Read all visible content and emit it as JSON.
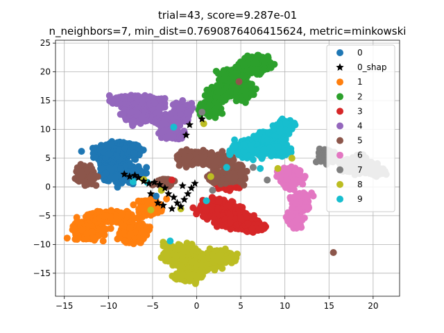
{
  "chart_data": {
    "type": "scatter",
    "title_lines": [
      "trial=43, score=9.287e-01",
      "n_neighbors=7, min_dist=0.7690876406415624, metric=minkowski"
    ],
    "xlabel": "",
    "ylabel": "",
    "xlim": [
      -16,
      23
    ],
    "ylim": [
      -19,
      25.5
    ],
    "xticks": [
      -15,
      -10,
      -5,
      0,
      5,
      10,
      15,
      20
    ],
    "yticks": [
      -15,
      -10,
      -5,
      0,
      5,
      10,
      15,
      20,
      25
    ],
    "grid": true,
    "legend_position": "top-right",
    "series": [
      {
        "name": "0",
        "marker": "circle",
        "color": "#1f77b4",
        "clusters": [
          [
            -9.5,
            5.8,
            1.6,
            1.5
          ],
          [
            -8.5,
            2.5,
            1.7,
            1.2
          ],
          [
            -7.3,
            6.5,
            1.0,
            0.9
          ]
        ]
      },
      {
        "name": "0_shap",
        "marker": "star",
        "color": "#000000",
        "points": [
          [
            -8.2,
            2.2
          ],
          [
            -7.6,
            1.8
          ],
          [
            -7.0,
            2.0
          ],
          [
            -6.6,
            1.6
          ],
          [
            -6.0,
            1.0
          ],
          [
            -5.4,
            0.6
          ],
          [
            -4.8,
            0.8
          ],
          [
            -4.2,
            0.4
          ],
          [
            -3.6,
            -0.2
          ],
          [
            -3.2,
            -1.2
          ],
          [
            -2.6,
            -1.8
          ],
          [
            -2.2,
            -2.8
          ],
          [
            -1.8,
            -3.4
          ],
          [
            -1.4,
            -2.2
          ],
          [
            -1.0,
            -1.2
          ],
          [
            -0.6,
            -0.2
          ],
          [
            -0.2,
            0.6
          ],
          [
            -3.8,
            -3.2
          ],
          [
            -2.8,
            -3.8
          ],
          [
            -4.4,
            -2.8
          ],
          [
            -1.2,
            9.0
          ],
          [
            -0.8,
            10.8
          ],
          [
            0.6,
            11.8
          ],
          [
            -1.6,
            0.2
          ],
          [
            -5.2,
            -1.2
          ]
        ]
      },
      {
        "name": "1",
        "marker": "circle",
        "color": "#ff7f0e",
        "clusters": [
          [
            -12.2,
            -7.5,
            1.4,
            1.2
          ],
          [
            -9.8,
            -5.2,
            2.3,
            0.7
          ],
          [
            -7.2,
            -7.8,
            1.2,
            1.3
          ],
          [
            -5.4,
            -3.4,
            1.0,
            1.1
          ]
        ]
      },
      {
        "name": "2",
        "marker": "circle",
        "color": "#2ca02c",
        "clusters": [
          [
            6.8,
            21.2,
            1.2,
            1.2
          ],
          [
            4.2,
            19.2,
            1.2,
            1.0
          ],
          [
            2.8,
            16.3,
            1.0,
            0.8
          ],
          [
            1.6,
            13.8,
            0.9,
            0.9
          ],
          [
            5.2,
            16.8,
            0.9,
            1.2
          ]
        ]
      },
      {
        "name": "3",
        "marker": "circle",
        "color": "#d62728",
        "clusters": [
          [
            2.3,
            -3.8,
            1.6,
            1.3
          ],
          [
            4.6,
            -5.8,
            1.6,
            1.0
          ],
          [
            6.6,
            -7.0,
            0.9,
            0.6
          ],
          [
            3.8,
            0.6,
            1.0,
            0.8
          ]
        ]
      },
      {
        "name": "4",
        "marker": "circle",
        "color": "#9467bd",
        "clusters": [
          [
            -7.4,
            14.8,
            1.4,
            0.9
          ],
          [
            -6.8,
            12.6,
            1.2,
            1.0
          ],
          [
            -4.8,
            14.6,
            1.0,
            0.8
          ],
          [
            -3.4,
            11.6,
            1.4,
            0.9
          ],
          [
            -1.6,
            13.0,
            0.8,
            1.3
          ],
          [
            -3.0,
            9.4,
            0.9,
            0.8
          ]
        ]
      },
      {
        "name": "5",
        "marker": "circle",
        "color": "#8c564b",
        "clusters": [
          [
            -12.6,
            2.0,
            0.8,
            1.1
          ],
          [
            -0.5,
            5.0,
            1.4,
            0.9
          ],
          [
            2.4,
            4.6,
            1.0,
            0.9
          ],
          [
            4.3,
            2.2,
            1.0,
            1.1
          ],
          [
            2.2,
            1.6,
            0.8,
            0.7
          ],
          [
            -3.6,
            0.8,
            0.8,
            0.5
          ]
        ]
      },
      {
        "name": "6",
        "marker": "circle",
        "color": "#e377c2",
        "clusters": [
          [
            10.6,
            1.8,
            1.0,
            1.4
          ],
          [
            11.8,
            -2.8,
            0.8,
            1.3
          ],
          [
            11.2,
            -5.8,
            0.6,
            1.0
          ]
        ]
      },
      {
        "name": "7",
        "marker": "circle",
        "color": "#7f7f7f",
        "clusters": [
          [
            15.0,
            5.2,
            0.9,
            0.8
          ],
          [
            18.2,
            3.8,
            1.5,
            1.0
          ],
          [
            20.5,
            2.6,
            0.8,
            0.5
          ]
        ]
      },
      {
        "name": "8",
        "marker": "circle",
        "color": "#bcbd22",
        "clusters": [
          [
            -1.6,
            -11.8,
            1.4,
            1.4
          ],
          [
            0.4,
            -13.4,
            1.2,
            1.0
          ],
          [
            2.6,
            -12.2,
            1.3,
            0.9
          ],
          [
            -1.0,
            -15.6,
            1.2,
            0.6
          ]
        ]
      },
      {
        "name": "9",
        "marker": "circle",
        "color": "#17becf",
        "clusters": [
          [
            6.0,
            6.6,
            1.6,
            1.0
          ],
          [
            8.4,
            8.4,
            1.2,
            1.0
          ],
          [
            10.0,
            10.6,
            0.7,
            0.8
          ],
          [
            9.0,
            6.4,
            1.2,
            0.8
          ]
        ]
      }
    ],
    "outliers": [
      {
        "series": "5",
        "x": 15.5,
        "y": -11.4
      },
      {
        "series": "5",
        "x": 4.8,
        "y": 18.3
      },
      {
        "series": "9",
        "x": -3.0,
        "y": -9.4
      },
      {
        "series": "9",
        "x": 1.1,
        "y": -2.4
      },
      {
        "series": "9",
        "x": -2.6,
        "y": 10.4
      },
      {
        "series": "9",
        "x": -5.6,
        "y": 0.8
      },
      {
        "series": "9",
        "x": -7.2,
        "y": 0.9
      },
      {
        "series": "9",
        "x": 3.4,
        "y": 3.4
      },
      {
        "series": "9",
        "x": 7.2,
        "y": 3.2
      },
      {
        "series": "8",
        "x": -6.0,
        "y": 1.3
      },
      {
        "series": "8",
        "x": -5.2,
        "y": -4.0
      },
      {
        "series": "8",
        "x": -4.0,
        "y": -0.6
      },
      {
        "series": "8",
        "x": -1.8,
        "y": -3.8
      },
      {
        "series": "8",
        "x": 1.6,
        "y": 1.8
      },
      {
        "series": "8",
        "x": 10.8,
        "y": 5.0
      },
      {
        "series": "8",
        "x": 9.2,
        "y": 3.2
      },
      {
        "series": "8",
        "x": -3.8,
        "y": -9.6
      },
      {
        "series": "8",
        "x": 0.8,
        "y": 11.0
      },
      {
        "series": "7",
        "x": 1.8,
        "y": -0.6
      },
      {
        "series": "7",
        "x": 0.6,
        "y": 13.0
      },
      {
        "series": "7",
        "x": 8.0,
        "y": 1.2
      },
      {
        "series": "7",
        "x": 6.4,
        "y": 3.4
      },
      {
        "series": "4",
        "x": -1.0,
        "y": 11.6
      },
      {
        "series": "3",
        "x": -2.8,
        "y": 1.2
      },
      {
        "series": "0",
        "x": -4.6,
        "y": -1.6
      }
    ]
  }
}
